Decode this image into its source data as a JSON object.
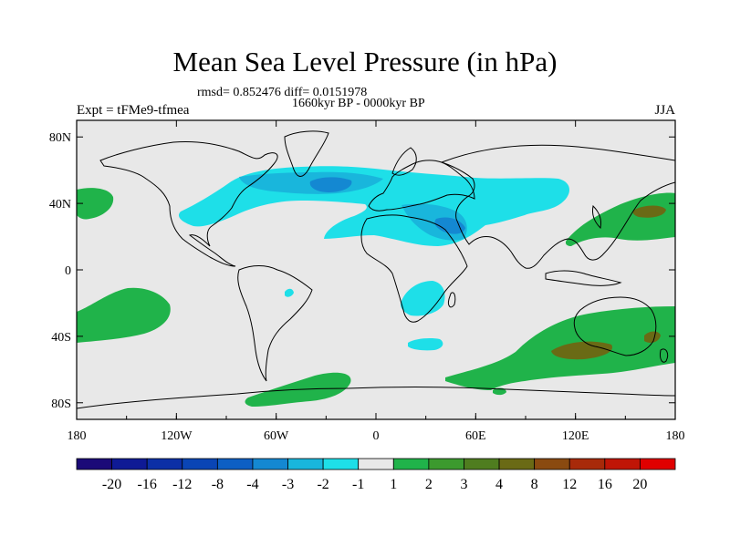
{
  "title": "Mean Sea Level Pressure (in hPa)",
  "stats_line": "rmsd= 0.852476 diff= 0.0151978",
  "period_line": "1660kyr BP - 0000kyr BP",
  "experiment_label": "Expt = tFMe9-tfmea",
  "season": "JJA",
  "axes": {
    "x_ticks": [
      "180",
      "120W",
      "60W",
      "0",
      "60E",
      "120E",
      "180"
    ],
    "y_ticks": [
      "80N",
      "40N",
      "0",
      "40S",
      "80S"
    ]
  },
  "colorbar": {
    "labels": [
      "-20",
      "-16",
      "-12",
      "-8",
      "-4",
      "-3",
      "-2",
      "-1",
      "1",
      "2",
      "3",
      "4",
      "8",
      "12",
      "16",
      "20"
    ],
    "colors": [
      "#1b0a78",
      "#0f1a95",
      "#0c2fa6",
      "#0a45b5",
      "#0d5fc4",
      "#1488d2",
      "#19b6dc",
      "#1edfe8",
      "#e8e8e8",
      "#20b34a",
      "#3c9a2e",
      "#4f7d1f",
      "#6a6a15",
      "#8a4a10",
      "#a82a0a",
      "#c01506",
      "#e00000"
    ]
  },
  "map": {
    "background": "#e8e8e8",
    "neg_light": "#1edfe8",
    "neg_mid": "#19b6dc",
    "neg_dark": "#1488d2",
    "pos_light": "#20b34a",
    "pos_mid": "#3c9a2e",
    "pos_dark": "#6a6a15"
  }
}
